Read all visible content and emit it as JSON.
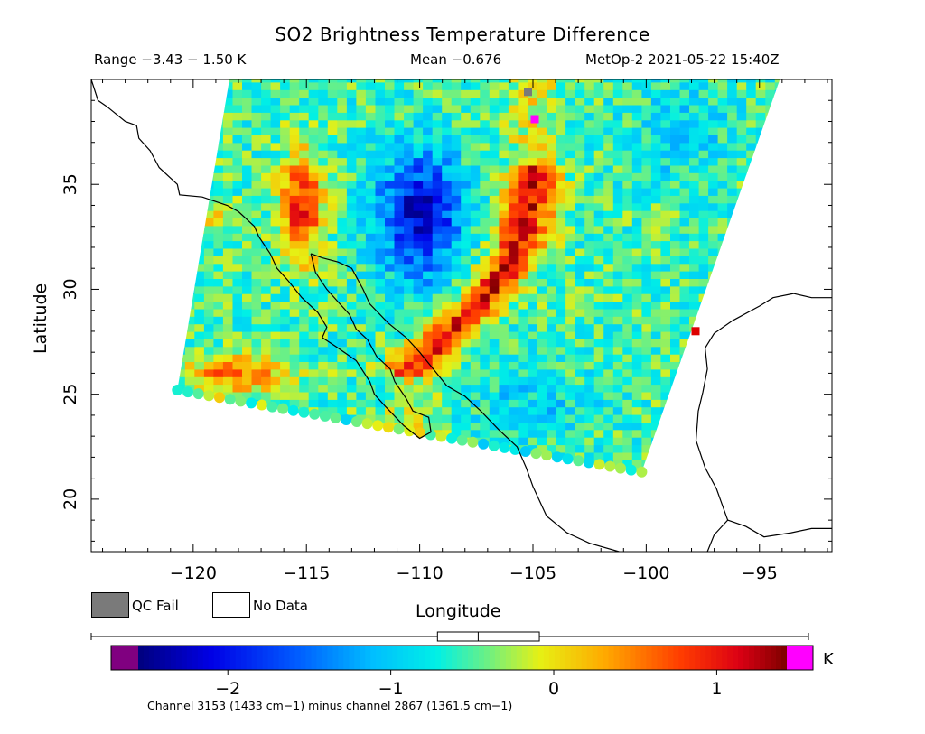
{
  "title": "SO2 Brightness Temperature Difference",
  "header": {
    "range": "Range −3.43 − 1.50 K",
    "mean": "Mean −0.676",
    "satellite": "MetOp-2 2021-05-22 15:40Z"
  },
  "legend_boxes": {
    "qc_fail": "QC Fail",
    "no_data": "No Data",
    "qc_fail_color": "#7a7a7a",
    "no_data_color": "#ffffff"
  },
  "colorbar": {
    "unit": "K",
    "ticks": [
      {
        "value": -2,
        "label": "−2"
      },
      {
        "value": -1,
        "label": "−1"
      },
      {
        "value": 0,
        "label": "0"
      },
      {
        "value": 1,
        "label": "1"
      }
    ],
    "range": [
      -2.55,
      1.43
    ],
    "under_color": "#800080",
    "over_color": "#ff00ff",
    "boxplot": {
      "whisker_low": -3.43,
      "q1": -1.05,
      "median": -0.77,
      "q3": -0.35,
      "whisker_high": 1.5
    },
    "caption": "Channel 3153 (1433 cm−1) minus channel 2867 (1361.5 cm−1)"
  },
  "chart_data": {
    "type": "heatmap",
    "title": "SO2 Brightness Temperature Difference",
    "xlabel": "Longitude",
    "ylabel": "Latitude",
    "xlim": [
      -124.5,
      -91.8
    ],
    "ylim": [
      17.5,
      40.0
    ],
    "x_ticks": [
      -120,
      -115,
      -110,
      -105,
      -100,
      -95
    ],
    "x_tick_labels": [
      "−120",
      "−115",
      "−110",
      "−105",
      "−100",
      "−95"
    ],
    "y_ticks": [
      20,
      25,
      30,
      35
    ],
    "y_tick_labels": [
      "20",
      "25",
      "30",
      "35"
    ],
    "value_range": [
      -3.43,
      1.5
    ],
    "mean": -0.676,
    "units": "K",
    "swath_corners": [
      [
        -118.4,
        40.0
      ],
      [
        -94.1,
        40.0
      ],
      [
        -100.2,
        21.3
      ],
      [
        -120.7,
        25.2
      ]
    ],
    "features": [
      {
        "label": "plume-high",
        "lon": -106.2,
        "lat": 32.5,
        "value": 1.0
      },
      {
        "label": "plume-core",
        "lon": -107.3,
        "lat": 29.5,
        "value": 1.2
      },
      {
        "label": "west-band",
        "lon": -115.2,
        "lat": 34.0,
        "value": 1.0
      },
      {
        "label": "southwest-band",
        "lon": -118.0,
        "lat": 26.0,
        "value": 0.7
      },
      {
        "label": "central-low",
        "lon": -110.0,
        "lat": 33.5,
        "value": -2.2
      }
    ],
    "coastlines": true
  }
}
